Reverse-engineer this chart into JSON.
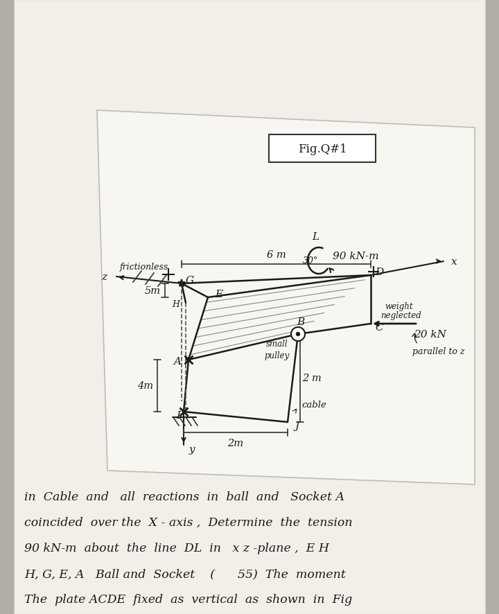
{
  "bg_color": "#b0aca6",
  "paper_color": "#f0ede8",
  "diagram_bg": "#e8e5df",
  "line_color": "#1a1a1a",
  "fig_label": "Fig.Q#1",
  "header_lines": [
    "The  plate ACDE  fixed  as  vertical  as  shown  in  Fig",
    "H, G, E, A   Ball and  Socket    (   , 55)  The  moment",
    "90 kN-m  about  the  line  DL  in   x z - plane ,  E H",
    "coincided  over the  X - axis ,  Determine  the  tension",
    "in  Cable  and   all  reactions  in  ball  and   Socket A"
  ]
}
